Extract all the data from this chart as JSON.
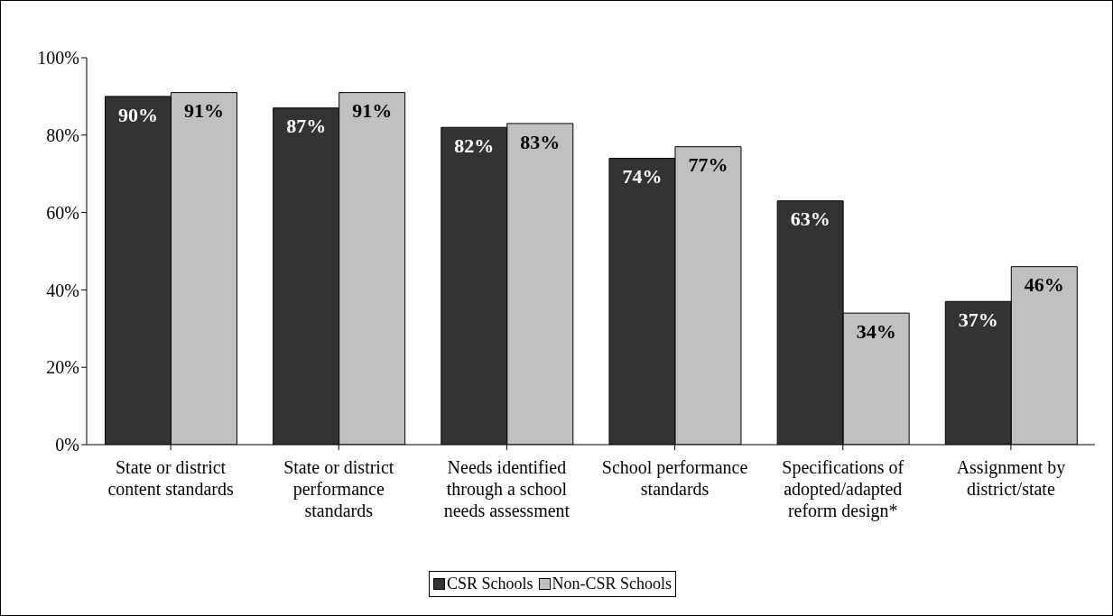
{
  "chart_data": {
    "type": "bar",
    "categories": [
      "State or district content standards",
      "State or district performance standards",
      "Needs identified through a school needs assessment",
      "School performance standards",
      "Specifications of adopted/adapted reform design*",
      "Assignment by district/state"
    ],
    "series": [
      {
        "name": "CSR Schools",
        "color": "#333333",
        "values": [
          90,
          87,
          82,
          74,
          63,
          37
        ],
        "value_labels": [
          "90%",
          "87%",
          "82%",
          "74%",
          "63%",
          "37%"
        ]
      },
      {
        "name": "Non-CSR Schools",
        "color": "#c0c0c0",
        "values": [
          91,
          91,
          83,
          77,
          34,
          46
        ],
        "value_labels": [
          "91%",
          "91%",
          "83%",
          "77%",
          "34%",
          "46%"
        ]
      }
    ],
    "ylim": [
      0,
      100
    ],
    "yticks": [
      {
        "value": 0,
        "label": "0%"
      },
      {
        "value": 20,
        "label": "20%"
      },
      {
        "value": 40,
        "label": "40%"
      },
      {
        "value": 60,
        "label": "60%"
      },
      {
        "value": 80,
        "label": "80%"
      },
      {
        "value": 100,
        "label": "100%"
      }
    ],
    "grid": false,
    "legend": "bottom"
  }
}
